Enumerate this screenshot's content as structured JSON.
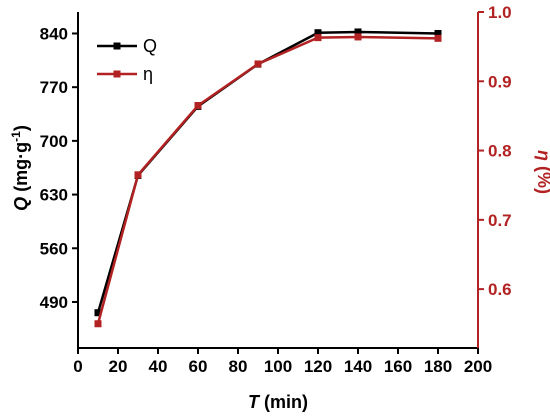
{
  "chart_data": {
    "type": "line",
    "x_axis": {
      "label_italic": "T",
      "label_rest": " (min)",
      "range": [
        0,
        200
      ],
      "ticks": [
        0,
        20,
        40,
        60,
        80,
        100,
        120,
        140,
        160,
        180,
        200
      ]
    },
    "y_left": {
      "label_italic": "Q",
      "label_rest": " (mg·g",
      "label_sup": "-1",
      "label_close": ")",
      "range": [
        430,
        868
      ],
      "ticks": [
        490,
        560,
        630,
        700,
        770,
        840
      ],
      "color": "#000000"
    },
    "y_right": {
      "label_italic": "η",
      "label_rest": " (%)",
      "range": [
        0.515,
        1.0
      ],
      "ticks": [
        "0.6",
        "0.7",
        "0.8",
        "0.9",
        "1.0"
      ],
      "tick_values": [
        0.6,
        0.7,
        0.8,
        0.9,
        1.0
      ],
      "color": "#b22222"
    },
    "series": [
      {
        "name": "Q",
        "axis": "left",
        "color": "#000000",
        "x": [
          10,
          30,
          60,
          90,
          120,
          140,
          180
        ],
        "y": [
          476,
          655,
          745,
          800,
          841,
          842,
          840
        ]
      },
      {
        "name": "η",
        "axis": "right",
        "color": "#b22222",
        "x": [
          10,
          30,
          60,
          90,
          120,
          140,
          180
        ],
        "y": [
          0.55,
          0.765,
          0.865,
          0.925,
          0.963,
          0.964,
          0.962
        ]
      }
    ],
    "legend": {
      "placement": "top-left"
    },
    "grid": false
  }
}
